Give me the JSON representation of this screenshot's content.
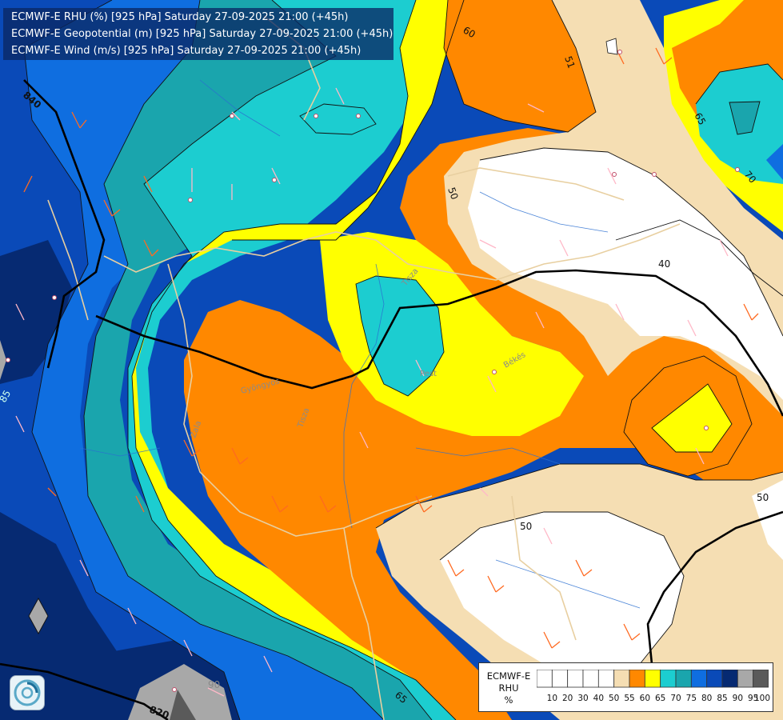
{
  "title_lines": [
    "ECMWF-E RHU (%) [925 hPa] Saturday 27-09-2025 21:00 (+45h)",
    "ECMWF-E Geopotential (m) [925 hPa] Saturday 27-09-2025 21:00 (+45h)",
    "ECMWF-E Wind (m/s) [925 hPa] Saturday 27-09-2025 21:00 (+45h)"
  ],
  "legend": {
    "label_lines": [
      "ECMWF-E",
      "RHU",
      "%"
    ],
    "ticks": [
      "10",
      "20",
      "30",
      "40",
      "50",
      "55",
      "60",
      "65",
      "70",
      "75",
      "80",
      "85",
      "90",
      "95",
      "100"
    ],
    "colors": [
      "#ffffff",
      "#ffffff",
      "#ffffff",
      "#ffffff",
      "#ffffff",
      "#f5deb3",
      "#ff8800",
      "#ffff00",
      "#1ccdd0",
      "#1aa5ad",
      "#0f6ee0",
      "#0a4ab8",
      "#062a72",
      "#a8a8a8",
      "#5a5a5a"
    ]
  },
  "colors": {
    "deep_navy": "#062a72",
    "dark_blue": "#0a4ab8",
    "blue": "#0f6ee0",
    "dark_teal": "#1aa5ad",
    "teal": "#1ccdd0",
    "yellow": "#ffff00",
    "orange": "#ff8800",
    "wheat": "#f5deb3",
    "white": "#ffffff",
    "grey": "#a8a8a8"
  },
  "contour_labels": [
    "840",
    "820",
    "60",
    "51",
    "65",
    "70",
    "50",
    "40",
    "50",
    "50",
    "85",
    "90",
    "65",
    "60"
  ],
  "place_labels": [
    "Tisza",
    "Gyöngyös",
    "Tisza",
    "Pest",
    "Békés",
    "Zala"
  ]
}
